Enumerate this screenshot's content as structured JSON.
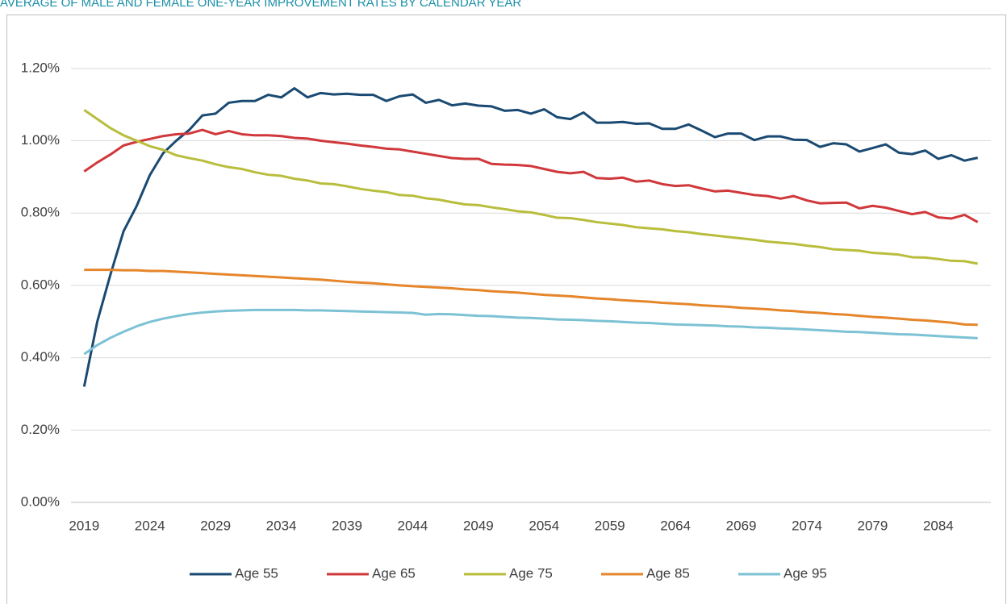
{
  "chart_data": {
    "type": "line",
    "title": "AVERAGE OF MALE AND FEMALE ONE-YEAR IMPROVEMENT RATES BY CALENDAR YEAR",
    "x": [
      2019,
      2020,
      2021,
      2022,
      2023,
      2024,
      2025,
      2026,
      2027,
      2028,
      2029,
      2030,
      2031,
      2032,
      2033,
      2034,
      2035,
      2036,
      2037,
      2038,
      2039,
      2040,
      2041,
      2042,
      2043,
      2044,
      2045,
      2046,
      2047,
      2048,
      2049,
      2050,
      2051,
      2052,
      2053,
      2054,
      2055,
      2056,
      2057,
      2058,
      2059,
      2060,
      2061,
      2062,
      2063,
      2064,
      2065,
      2066,
      2067,
      2068,
      2069,
      2070,
      2071,
      2072,
      2073,
      2074,
      2075,
      2076,
      2077,
      2078,
      2079,
      2080,
      2081,
      2082,
      2083,
      2084,
      2085,
      2086,
      2087
    ],
    "xlim": [
      2018,
      2088
    ],
    "xticks": [
      2019,
      2024,
      2029,
      2034,
      2039,
      2044,
      2049,
      2054,
      2059,
      2064,
      2069,
      2074,
      2079,
      2084
    ],
    "ylim": [
      0,
      1.3
    ],
    "yticks": [
      {
        "value": 0,
        "label": "0.00%"
      },
      {
        "value": 0.2,
        "label": "0.20%"
      },
      {
        "value": 0.4,
        "label": "0.40%"
      },
      {
        "value": 0.6,
        "label": "0.60%"
      },
      {
        "value": 0.8,
        "label": "0.80%"
      },
      {
        "value": 1.0,
        "label": "1.00%"
      },
      {
        "value": 1.2,
        "label": "1.20%"
      }
    ],
    "grid": true,
    "legend": "bottom",
    "series": [
      {
        "name": "Age 55",
        "color": "#1a4a72",
        "values": [
          0.32,
          0.5,
          0.63,
          0.75,
          0.82,
          0.905,
          0.965,
          1.0,
          1.03,
          1.07,
          1.075,
          1.105,
          1.11,
          1.11,
          1.127,
          1.12,
          1.145,
          1.12,
          1.132,
          1.128,
          1.13,
          1.127,
          1.127,
          1.11,
          1.123,
          1.128,
          1.105,
          1.113,
          1.098,
          1.103,
          1.097,
          1.095,
          1.083,
          1.085,
          1.075,
          1.087,
          1.065,
          1.06,
          1.078,
          1.05,
          1.05,
          1.052,
          1.047,
          1.048,
          1.033,
          1.033,
          1.045,
          1.028,
          1.01,
          1.02,
          1.02,
          1.002,
          1.012,
          1.012,
          1.003,
          1.002,
          0.983,
          0.993,
          0.99,
          0.97,
          0.98,
          0.99,
          0.967,
          0.963,
          0.973,
          0.95,
          0.96,
          0.945,
          0.953
        ]
      },
      {
        "name": "Age 65",
        "color": "#d0383b",
        "values": [
          0.915,
          0.94,
          0.962,
          0.987,
          0.997,
          1.005,
          1.013,
          1.018,
          1.02,
          1.03,
          1.018,
          1.027,
          1.018,
          1.015,
          1.015,
          1.013,
          1.008,
          1.006,
          1.0,
          0.996,
          0.992,
          0.987,
          0.983,
          0.978,
          0.976,
          0.97,
          0.964,
          0.958,
          0.952,
          0.95,
          0.95,
          0.936,
          0.934,
          0.933,
          0.93,
          0.922,
          0.914,
          0.91,
          0.914,
          0.897,
          0.895,
          0.898,
          0.887,
          0.89,
          0.88,
          0.875,
          0.877,
          0.868,
          0.86,
          0.862,
          0.856,
          0.85,
          0.847,
          0.84,
          0.847,
          0.835,
          0.827,
          0.828,
          0.829,
          0.813,
          0.82,
          0.815,
          0.806,
          0.797,
          0.803,
          0.788,
          0.785,
          0.795,
          0.775
        ]
      },
      {
        "name": "Age 75",
        "color": "#b8be3c",
        "values": [
          1.085,
          1.06,
          1.035,
          1.015,
          1.0,
          0.985,
          0.975,
          0.96,
          0.952,
          0.945,
          0.935,
          0.927,
          0.922,
          0.913,
          0.906,
          0.903,
          0.895,
          0.89,
          0.882,
          0.88,
          0.874,
          0.867,
          0.862,
          0.858,
          0.85,
          0.848,
          0.841,
          0.837,
          0.83,
          0.824,
          0.822,
          0.816,
          0.811,
          0.805,
          0.802,
          0.795,
          0.787,
          0.786,
          0.781,
          0.775,
          0.771,
          0.767,
          0.761,
          0.758,
          0.755,
          0.75,
          0.747,
          0.742,
          0.738,
          0.734,
          0.73,
          0.726,
          0.721,
          0.718,
          0.715,
          0.71,
          0.706,
          0.7,
          0.698,
          0.696,
          0.69,
          0.688,
          0.685,
          0.678,
          0.677,
          0.673,
          0.668,
          0.667,
          0.66
        ]
      },
      {
        "name": "Age 85",
        "color": "#e5862b",
        "values": [
          0.643,
          0.643,
          0.643,
          0.642,
          0.642,
          0.64,
          0.64,
          0.638,
          0.636,
          0.634,
          0.632,
          0.63,
          0.628,
          0.626,
          0.624,
          0.622,
          0.62,
          0.618,
          0.616,
          0.613,
          0.61,
          0.608,
          0.606,
          0.603,
          0.6,
          0.598,
          0.596,
          0.594,
          0.592,
          0.589,
          0.587,
          0.584,
          0.582,
          0.58,
          0.577,
          0.574,
          0.572,
          0.57,
          0.567,
          0.564,
          0.562,
          0.559,
          0.557,
          0.555,
          0.552,
          0.55,
          0.548,
          0.545,
          0.543,
          0.541,
          0.538,
          0.536,
          0.534,
          0.531,
          0.529,
          0.526,
          0.524,
          0.521,
          0.519,
          0.516,
          0.513,
          0.511,
          0.508,
          0.505,
          0.503,
          0.5,
          0.497,
          0.492,
          0.491
        ]
      },
      {
        "name": "Age 95",
        "color": "#7cc2d4",
        "values": [
          0.41,
          0.435,
          0.455,
          0.472,
          0.487,
          0.499,
          0.508,
          0.515,
          0.521,
          0.525,
          0.528,
          0.53,
          0.531,
          0.532,
          0.532,
          0.532,
          0.532,
          0.531,
          0.531,
          0.53,
          0.529,
          0.528,
          0.527,
          0.526,
          0.525,
          0.524,
          0.519,
          0.521,
          0.52,
          0.518,
          0.516,
          0.515,
          0.513,
          0.511,
          0.51,
          0.508,
          0.506,
          0.505,
          0.504,
          0.502,
          0.501,
          0.499,
          0.497,
          0.496,
          0.494,
          0.492,
          0.491,
          0.49,
          0.489,
          0.487,
          0.486,
          0.484,
          0.483,
          0.481,
          0.48,
          0.478,
          0.476,
          0.474,
          0.472,
          0.471,
          0.469,
          0.467,
          0.465,
          0.464,
          0.462,
          0.46,
          0.458,
          0.456,
          0.454
        ]
      }
    ]
  }
}
